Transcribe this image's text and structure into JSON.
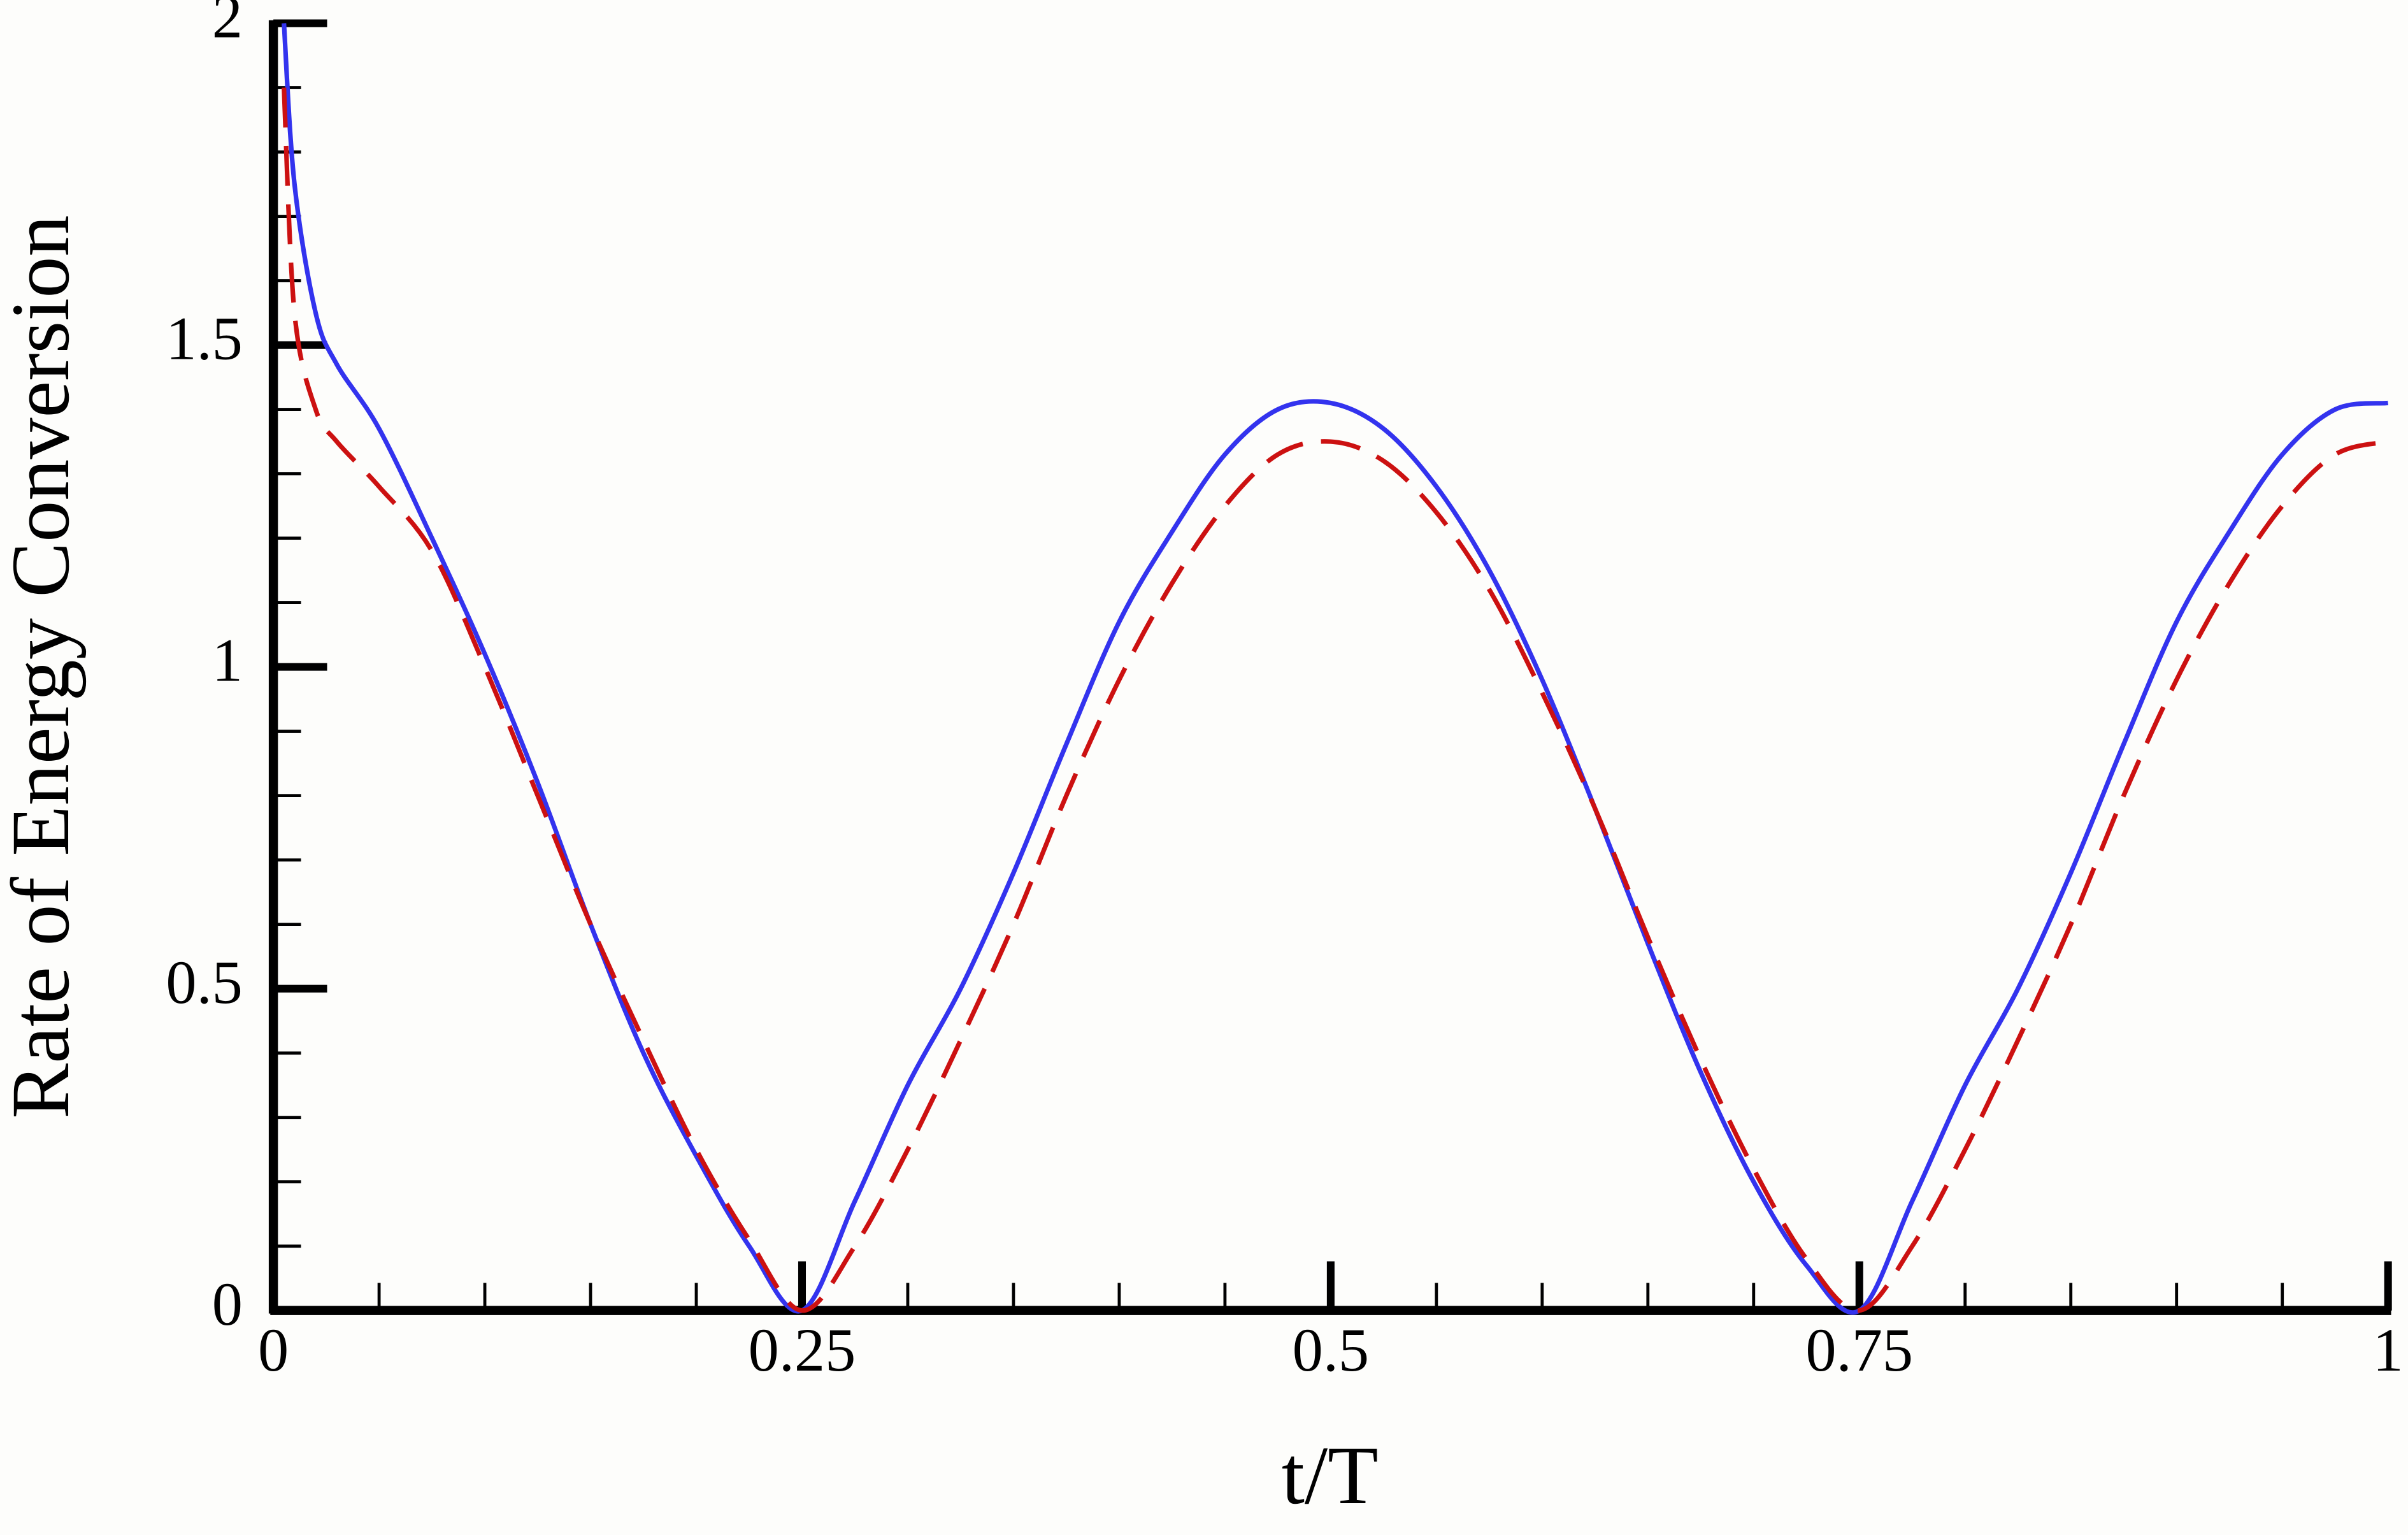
{
  "chart_data": {
    "type": "line",
    "xlabel": "t/T",
    "ylabel": "Rate of Energy Conversion",
    "x": [
      0.005,
      0.01,
      0.02,
      0.03,
      0.05,
      0.075,
      0.1,
      0.125,
      0.15,
      0.175,
      0.2,
      0.225,
      0.25,
      0.275,
      0.3,
      0.325,
      0.35,
      0.375,
      0.4,
      0.425,
      0.45,
      0.475,
      0.5,
      0.525,
      0.55,
      0.575,
      0.6,
      0.625,
      0.65,
      0.675,
      0.7,
      0.725,
      0.75,
      0.775,
      0.8,
      0.825,
      0.85,
      0.875,
      0.9,
      0.925,
      0.95,
      0.975,
      1
    ],
    "series": [
      {
        "color": "#3333ee",
        "dash": false,
        "values": [
          2.0,
          1.75,
          1.55,
          1.47,
          1.37,
          1.2,
          1.02,
          0.82,
          0.6,
          0.4,
          0.24,
          0.1,
          0,
          0.17,
          0.35,
          0.5,
          0.68,
          0.88,
          1.07,
          1.21,
          1.33,
          1.4,
          1.41,
          1.37,
          1.28,
          1.15,
          0.98,
          0.78,
          0.57,
          0.37,
          0.2,
          0.07,
          0,
          0.17,
          0.35,
          0.5,
          0.68,
          0.88,
          1.07,
          1.21,
          1.33,
          1.4,
          1.41
        ]
      },
      {
        "color": "#cc1111",
        "dash": true,
        "values": [
          1.9,
          1.55,
          1.4,
          1.35,
          1.28,
          1.18,
          1.0,
          0.8,
          0.6,
          0.42,
          0.25,
          0.11,
          0,
          0.1,
          0.25,
          0.42,
          0.6,
          0.8,
          0.98,
          1.13,
          1.25,
          1.33,
          1.35,
          1.32,
          1.24,
          1.12,
          0.96,
          0.78,
          0.58,
          0.39,
          0.22,
          0.08,
          0,
          0.1,
          0.25,
          0.42,
          0.6,
          0.8,
          0.98,
          1.13,
          1.25,
          1.33,
          1.35
        ]
      }
    ],
    "xlim": [
      0,
      1
    ],
    "ylim": [
      0,
      2
    ],
    "xticks": [
      0,
      0.25,
      0.5,
      0.75,
      1
    ],
    "yticks": [
      0,
      0.5,
      1,
      1.5,
      2
    ]
  }
}
